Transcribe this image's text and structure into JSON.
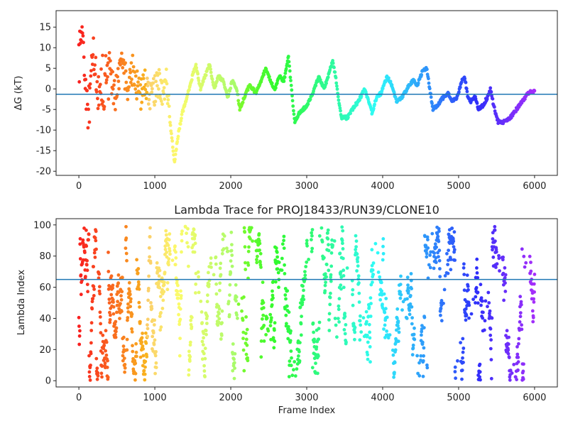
{
  "chart_data": [
    {
      "type": "scatter",
      "title": "",
      "xlabel": "",
      "ylabel": "ΔG (kT)",
      "xlim": [
        -300,
        6300
      ],
      "ylim": [
        -21,
        19
      ],
      "xticks": [
        0,
        1000,
        2000,
        3000,
        4000,
        5000,
        6000
      ],
      "yticks": [
        -20,
        -15,
        -10,
        -5,
        0,
        5,
        10,
        15
      ],
      "reference_line": {
        "y": -1.3,
        "color": "#1f77b4"
      },
      "colormap": "rainbow (red at frame 0 → violet at frame 6000)",
      "trace_knots": [
        [
          0,
          10
        ],
        [
          40,
          15
        ],
        [
          80,
          3
        ],
        [
          120,
          -5
        ],
        [
          180,
          8
        ],
        [
          250,
          0
        ],
        [
          320,
          -3
        ],
        [
          400,
          5
        ],
        [
          480,
          -2
        ],
        [
          560,
          7
        ],
        [
          640,
          0
        ],
        [
          720,
          5
        ],
        [
          800,
          -2
        ],
        [
          880,
          2
        ],
        [
          960,
          -3
        ],
        [
          1040,
          2
        ],
        [
          1100,
          -1
        ],
        [
          1150,
          3
        ],
        [
          1200,
          -8
        ],
        [
          1260,
          -18
        ],
        [
          1300,
          -12
        ],
        [
          1360,
          -6
        ],
        [
          1420,
          -2
        ],
        [
          1480,
          2
        ],
        [
          1540,
          6
        ],
        [
          1600,
          0
        ],
        [
          1660,
          3
        ],
        [
          1720,
          6
        ],
        [
          1780,
          0
        ],
        [
          1840,
          3
        ],
        [
          1900,
          2
        ],
        [
          1960,
          -2
        ],
        [
          2020,
          2
        ],
        [
          2080,
          0
        ],
        [
          2120,
          -5
        ],
        [
          2180,
          -2
        ],
        [
          2250,
          1
        ],
        [
          2330,
          -1
        ],
        [
          2400,
          2
        ],
        [
          2460,
          5
        ],
        [
          2520,
          2
        ],
        [
          2580,
          0
        ],
        [
          2640,
          3
        ],
        [
          2700,
          2
        ],
        [
          2760,
          8
        ],
        [
          2800,
          0
        ],
        [
          2840,
          -8
        ],
        [
          2900,
          -6
        ],
        [
          3000,
          -4
        ],
        [
          3080,
          -1
        ],
        [
          3160,
          3
        ],
        [
          3230,
          0
        ],
        [
          3280,
          3
        ],
        [
          3340,
          7
        ],
        [
          3380,
          3
        ],
        [
          3420,
          -3
        ],
        [
          3460,
          -7
        ],
        [
          3540,
          -7
        ],
        [
          3600,
          -5
        ],
        [
          3680,
          -3
        ],
        [
          3760,
          0
        ],
        [
          3820,
          -3
        ],
        [
          3860,
          -6
        ],
        [
          3920,
          -2
        ],
        [
          3980,
          -1
        ],
        [
          4060,
          3
        ],
        [
          4120,
          1
        ],
        [
          4180,
          -3
        ],
        [
          4260,
          -2
        ],
        [
          4320,
          0
        ],
        [
          4400,
          2
        ],
        [
          4460,
          1
        ],
        [
          4520,
          4
        ],
        [
          4580,
          5
        ],
        [
          4620,
          0
        ],
        [
          4660,
          -5
        ],
        [
          4720,
          -4
        ],
        [
          4800,
          -2
        ],
        [
          4860,
          -1
        ],
        [
          4920,
          -3
        ],
        [
          4980,
          -2
        ],
        [
          5040,
          2
        ],
        [
          5080,
          3
        ],
        [
          5120,
          -2
        ],
        [
          5160,
          -3
        ],
        [
          5220,
          -2
        ],
        [
          5260,
          -5
        ],
        [
          5320,
          -4
        ],
        [
          5380,
          -2
        ],
        [
          5420,
          0
        ],
        [
          5460,
          -4
        ],
        [
          5520,
          -8
        ],
        [
          5600,
          -8
        ],
        [
          5680,
          -7
        ],
        [
          5760,
          -5
        ],
        [
          5840,
          -3
        ],
        [
          5920,
          -1
        ],
        [
          6000,
          -0.5
        ]
      ]
    },
    {
      "type": "scatter",
      "title": "Lambda Trace for PROJ18433/RUN39/CLONE10",
      "xlabel": "Frame Index",
      "ylabel": "Lambda Index",
      "xlim": [
        -300,
        6300
      ],
      "ylim": [
        -4,
        104
      ],
      "xticks": [
        0,
        1000,
        2000,
        3000,
        4000,
        5000,
        6000
      ],
      "yticks": [
        0,
        20,
        40,
        60,
        80,
        100
      ],
      "reference_line": {
        "y": 65,
        "color": "#1f77b4"
      },
      "colormap": "rainbow (red at frame 0 → violet at frame 6000)",
      "lambda_range": [
        0,
        99
      ]
    }
  ]
}
